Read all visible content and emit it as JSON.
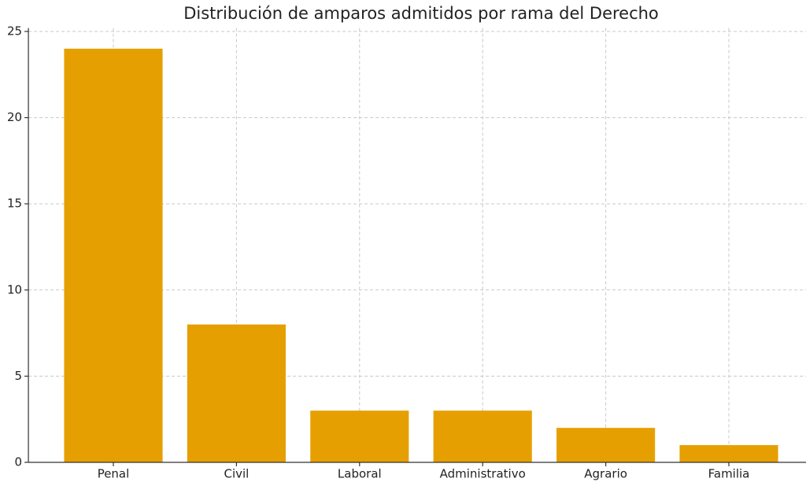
{
  "chart_data": {
    "type": "bar",
    "title": "Distribución de amparos admitidos por rama del Derecho",
    "categories": [
      "Penal",
      "Civil",
      "Laboral",
      "Administrativo",
      "Agrario",
      "Familia"
    ],
    "values": [
      24,
      8,
      3,
      3,
      2,
      1
    ],
    "color": "#e69f00",
    "ylim": [
      0,
      25.2
    ],
    "yticks": [
      0,
      5,
      10,
      15,
      20,
      25
    ],
    "grid": true
  }
}
